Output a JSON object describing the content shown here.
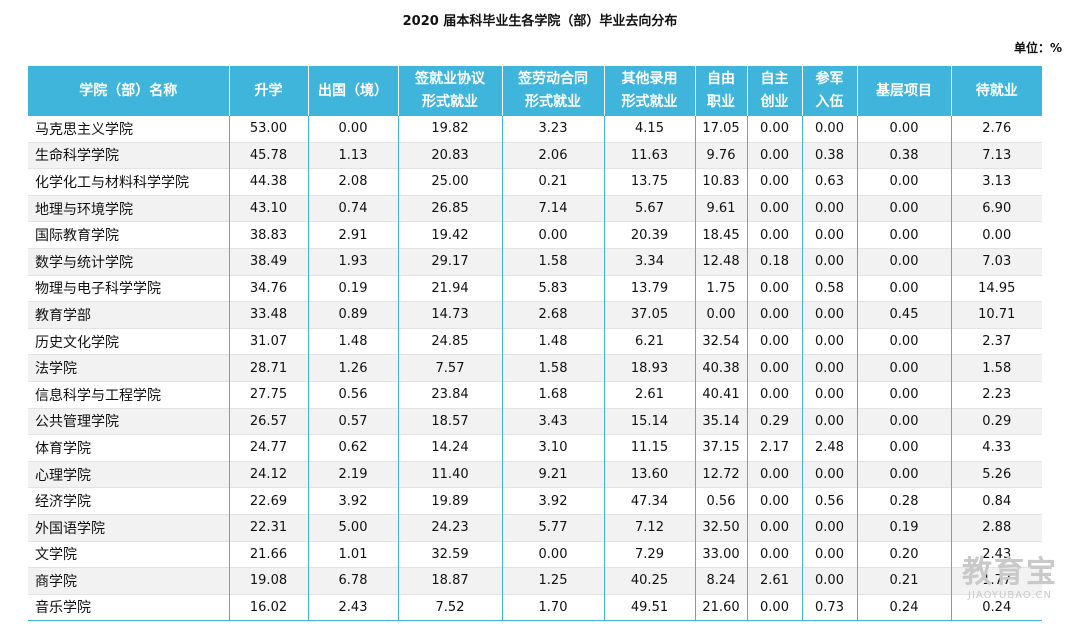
{
  "title": "2020 届本科毕业生各学院（部）毕业去向分布",
  "unit": "单位：%",
  "headers": [
    [
      "学院（部）名称"
    ],
    [
      "升学"
    ],
    [
      "出国（境）"
    ],
    [
      "签就业协议",
      "形式就业"
    ],
    [
      "签劳动合同",
      "形式就业"
    ],
    [
      "其他录用",
      "形式就业"
    ],
    [
      "自由",
      "职业"
    ],
    [
      "自主",
      "创业"
    ],
    [
      "参军",
      "入伍"
    ],
    [
      "基层项目"
    ],
    [
      "待就业"
    ]
  ],
  "rows": [
    [
      "马克思主义学院",
      "53.00",
      "0.00",
      "19.82",
      "3.23",
      "4.15",
      "17.05",
      "0.00",
      "0.00",
      "0.00",
      "2.76"
    ],
    [
      "生命科学学院",
      "45.78",
      "1.13",
      "20.83",
      "2.06",
      "11.63",
      "9.76",
      "0.00",
      "0.38",
      "0.38",
      "7.13"
    ],
    [
      "化学化工与材料科学学院",
      "44.38",
      "2.08",
      "25.00",
      "0.21",
      "13.75",
      "10.83",
      "0.00",
      "0.63",
      "0.00",
      "3.13"
    ],
    [
      "地理与环境学院",
      "43.10",
      "0.74",
      "26.85",
      "7.14",
      "5.67",
      "9.61",
      "0.00",
      "0.00",
      "0.00",
      "6.90"
    ],
    [
      "国际教育学院",
      "38.83",
      "2.91",
      "19.42",
      "0.00",
      "20.39",
      "18.45",
      "0.00",
      "0.00",
      "0.00",
      "0.00"
    ],
    [
      "数学与统计学院",
      "38.49",
      "1.93",
      "29.17",
      "1.58",
      "3.34",
      "12.48",
      "0.18",
      "0.00",
      "0.00",
      "7.03"
    ],
    [
      "物理与电子科学学院",
      "34.76",
      "0.19",
      "21.94",
      "5.83",
      "13.79",
      "1.75",
      "0.00",
      "0.58",
      "0.00",
      "14.95"
    ],
    [
      "教育学部",
      "33.48",
      "0.89",
      "14.73",
      "2.68",
      "37.05",
      "0.00",
      "0.00",
      "0.00",
      "0.45",
      "10.71"
    ],
    [
      "历史文化学院",
      "31.07",
      "1.48",
      "24.85",
      "1.48",
      "6.21",
      "32.54",
      "0.00",
      "0.00",
      "0.00",
      "2.37"
    ],
    [
      "法学院",
      "28.71",
      "1.26",
      "7.57",
      "1.58",
      "18.93",
      "40.38",
      "0.00",
      "0.00",
      "0.00",
      "1.58"
    ],
    [
      "信息科学与工程学院",
      "27.75",
      "0.56",
      "23.84",
      "1.68",
      "2.61",
      "40.41",
      "0.00",
      "0.00",
      "0.00",
      "2.23"
    ],
    [
      "公共管理学院",
      "26.57",
      "0.57",
      "18.57",
      "3.43",
      "15.14",
      "35.14",
      "0.29",
      "0.00",
      "0.00",
      "0.29"
    ],
    [
      "体育学院",
      "24.77",
      "0.62",
      "14.24",
      "3.10",
      "11.15",
      "37.15",
      "2.17",
      "2.48",
      "0.00",
      "4.33"
    ],
    [
      "心理学院",
      "24.12",
      "2.19",
      "11.40",
      "9.21",
      "13.60",
      "12.72",
      "0.00",
      "0.00",
      "0.00",
      "5.26"
    ],
    [
      "经济学院",
      "22.69",
      "3.92",
      "19.89",
      "3.92",
      "47.34",
      "0.56",
      "0.00",
      "0.56",
      "0.28",
      "0.84"
    ],
    [
      "外国语学院",
      "22.31",
      "5.00",
      "24.23",
      "5.77",
      "7.12",
      "32.50",
      "0.00",
      "0.00",
      "0.19",
      "2.88"
    ],
    [
      "文学院",
      "21.66",
      "1.01",
      "32.59",
      "0.00",
      "7.29",
      "33.00",
      "0.00",
      "0.00",
      "0.20",
      "2.43"
    ],
    [
      "商学院",
      "19.08",
      "6.78",
      "18.87",
      "1.25",
      "40.25",
      "8.24",
      "2.61",
      "0.00",
      "0.21",
      "1.77"
    ],
    [
      "音乐学院",
      "16.02",
      "2.43",
      "7.52",
      "1.70",
      "49.51",
      "21.60",
      "0.00",
      "0.73",
      "0.24",
      "0.24"
    ]
  ],
  "watermark": {
    "main": "教育宝",
    "sub": "JIAOYUBAO.CN"
  }
}
